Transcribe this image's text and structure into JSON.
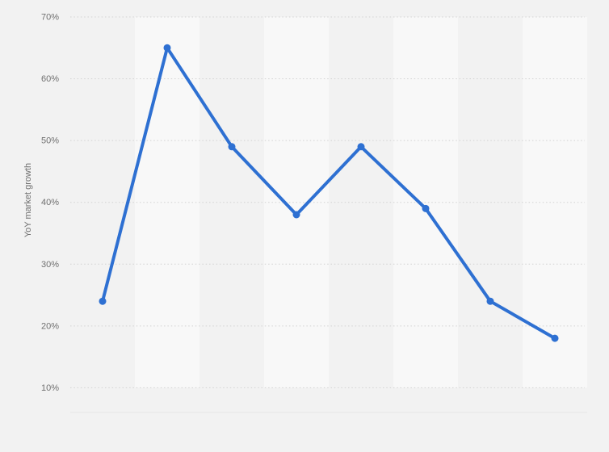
{
  "chart_data": {
    "type": "line",
    "title": "",
    "xlabel": "",
    "ylabel": "YoY market growth",
    "categories": [
      "",
      "",
      "",
      "",
      "",
      "",
      "",
      ""
    ],
    "series": [
      {
        "name": "YoY market growth",
        "values": [
          24,
          65,
          49,
          38,
          49,
          39,
          24,
          18
        ]
      }
    ],
    "yticks": [
      {
        "value": 70,
        "label": "70%"
      },
      {
        "value": 60,
        "label": "60%"
      },
      {
        "value": 50,
        "label": "50%"
      },
      {
        "value": 40,
        "label": "40%"
      },
      {
        "value": 30,
        "label": "30%"
      },
      {
        "value": 20,
        "label": "20%"
      },
      {
        "value": 10,
        "label": "10%"
      }
    ],
    "ylim": [
      6,
      70
    ],
    "grid": "horizontal-dotted",
    "legend": "none",
    "x_axis_labels_visible": false,
    "plot_bands": "alternating-vertical-columns",
    "colors": {
      "line": "#2e70d2",
      "marker": "#2e70d2",
      "background": "#f2f2f2",
      "band_light": "#f8f8f8",
      "gridline": "#d2d2d2",
      "axis_line": "#e7e7e7",
      "axis_text": "#6f6f6f"
    }
  }
}
